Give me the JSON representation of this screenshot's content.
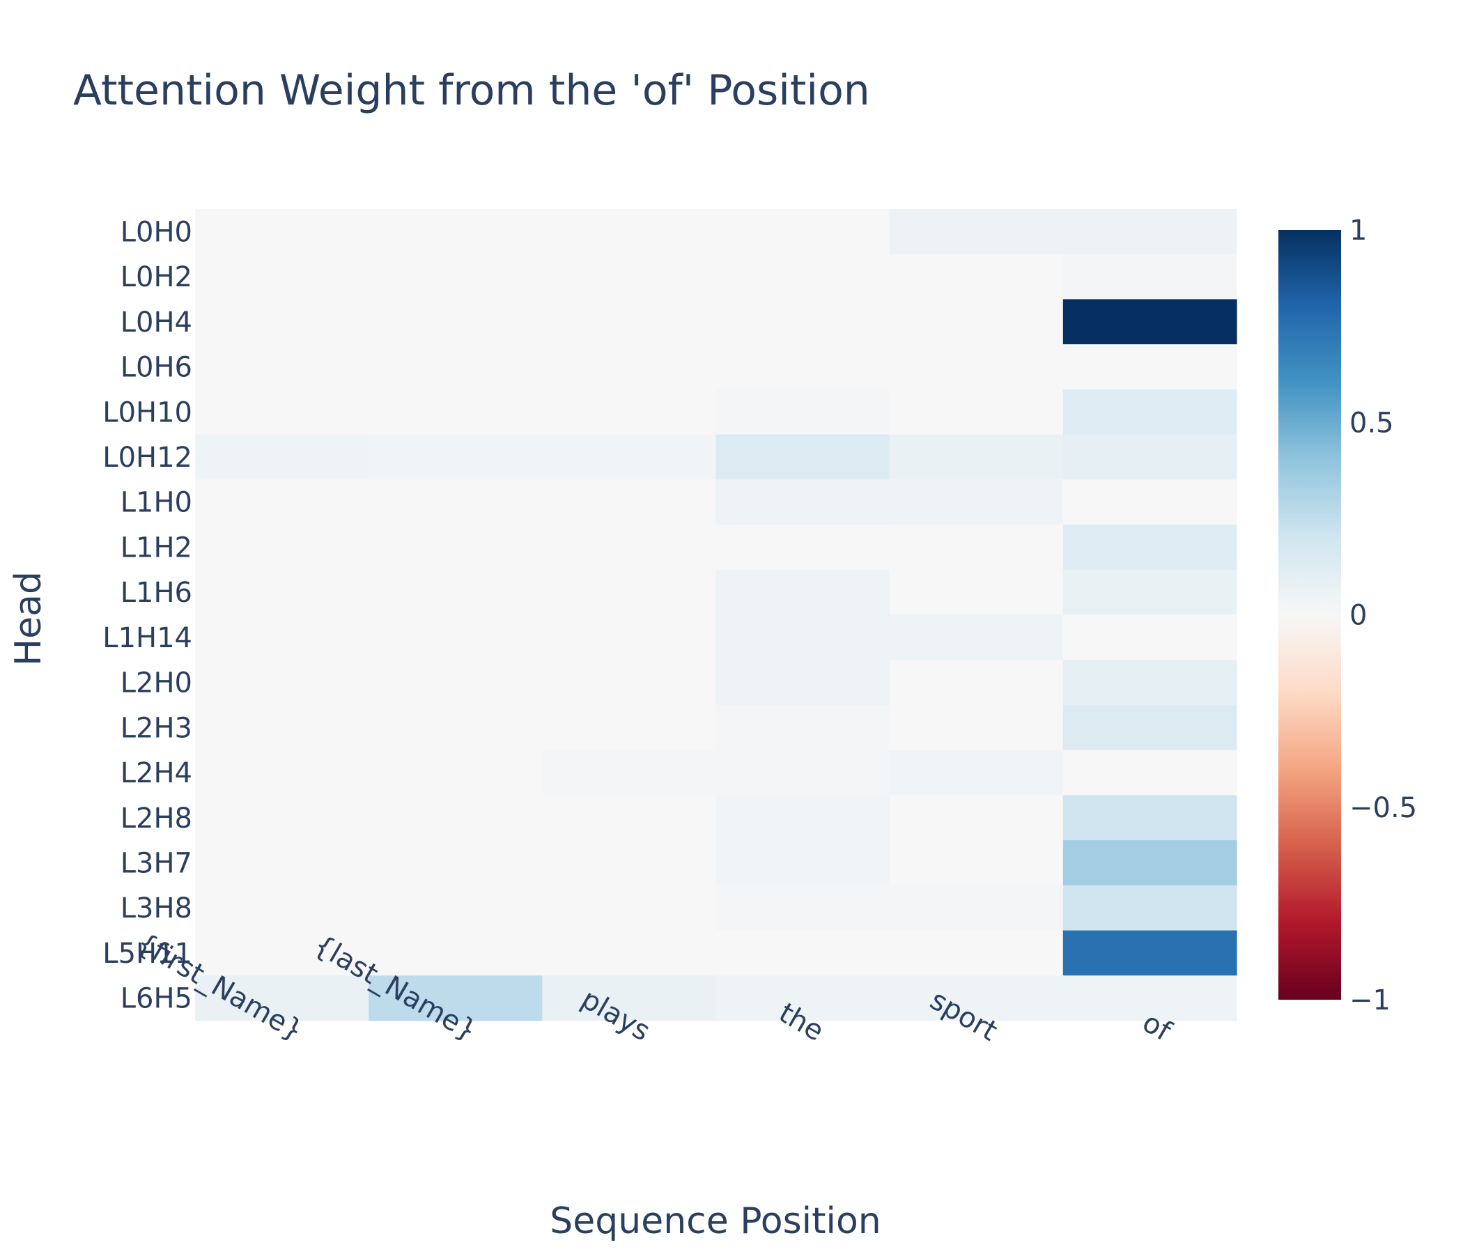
{
  "chart_data": {
    "type": "heatmap",
    "title": "Attention Weight from the 'of' Position",
    "xlabel": "Sequence Position",
    "ylabel": "Head",
    "x": [
      "{first_Name}",
      "{last_Name}",
      "plays",
      "the",
      "sport",
      "of"
    ],
    "y": [
      "L0H0",
      "L0H2",
      "L0H4",
      "L0H6",
      "L0H10",
      "L0H12",
      "L1H0",
      "L1H2",
      "L1H6",
      "L1H14",
      "L2H0",
      "L2H3",
      "L2H4",
      "L2H8",
      "L3H7",
      "L3H8",
      "L5H11",
      "L6H5"
    ],
    "z": [
      [
        0.0,
        0.0,
        0.0,
        0.0,
        0.06,
        0.06
      ],
      [
        0.0,
        0.0,
        0.0,
        0.0,
        0.0,
        0.02
      ],
      [
        0.0,
        0.0,
        0.0,
        0.0,
        0.0,
        1.0
      ],
      [
        0.0,
        0.0,
        0.0,
        0.0,
        0.0,
        0.0
      ],
      [
        0.0,
        0.0,
        0.0,
        0.02,
        0.0,
        0.12
      ],
      [
        0.05,
        0.03,
        0.03,
        0.14,
        0.07,
        0.09
      ],
      [
        0.0,
        0.0,
        0.0,
        0.05,
        0.04,
        0.0
      ],
      [
        0.0,
        0.0,
        0.0,
        0.0,
        0.0,
        0.12
      ],
      [
        0.0,
        0.0,
        0.0,
        0.05,
        0.0,
        0.07
      ],
      [
        0.0,
        0.0,
        0.0,
        0.05,
        0.05,
        0.0
      ],
      [
        0.0,
        0.0,
        0.0,
        0.05,
        0.0,
        0.09
      ],
      [
        0.0,
        0.0,
        0.0,
        0.02,
        0.0,
        0.14
      ],
      [
        0.0,
        0.0,
        0.02,
        0.02,
        0.03,
        0.0
      ],
      [
        0.0,
        0.0,
        0.0,
        0.03,
        0.0,
        0.2
      ],
      [
        0.0,
        0.0,
        0.0,
        0.03,
        0.0,
        0.35
      ],
      [
        0.0,
        0.0,
        0.0,
        0.02,
        0.02,
        0.2
      ],
      [
        0.0,
        0.0,
        0.0,
        0.0,
        0.0,
        0.75
      ],
      [
        0.07,
        0.26,
        0.07,
        0.05,
        0.05,
        0.05
      ]
    ],
    "zlim": [
      -1,
      1
    ],
    "colorscale": "RdBu",
    "colorbar_ticks": [
      "1",
      "0.5",
      "0",
      "−0.5",
      "−1"
    ],
    "grid": false,
    "colorbar_placement": "right"
  }
}
